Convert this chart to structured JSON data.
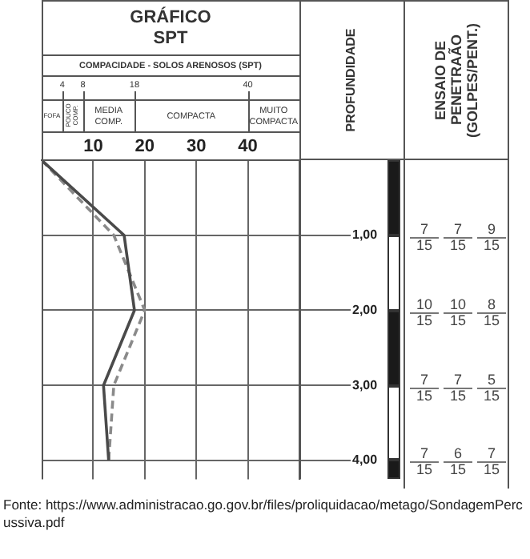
{
  "chart_data": {
    "type": "line",
    "orientation": "horizontal",
    "title": "GRÁFICO SPT",
    "subtitle": "COMPACIDADE - SOLOS ARENOSOS (SPT)",
    "ylabel": "PROFUNDIDADE",
    "series": [
      {
        "x": [
          0,
          1,
          2,
          3,
          4
        ],
        "values": [
          0,
          16,
          18,
          12,
          13
        ],
        "color": "#4a4a4a",
        "line_style": "solid"
      },
      {
        "x": [
          0,
          1,
          2,
          3,
          4
        ],
        "values": [
          0,
          14,
          20,
          14,
          13
        ],
        "color": "#8a8a8a",
        "line_style": "dashed"
      }
    ],
    "xlim": [
      0,
      50
    ],
    "xticks": [
      10,
      20,
      30,
      40
    ],
    "x2lim": [
      0,
      50
    ],
    "x2ticks": [
      4,
      8,
      18,
      40
    ],
    "ylim": [
      4.25,
      0
    ],
    "yticks": [
      {
        "value": 1,
        "label": "1,00"
      },
      {
        "value": 2,
        "label": "2,00"
      },
      {
        "value": 3,
        "label": "3,00"
      },
      {
        "value": 4,
        "label": "4,00"
      }
    ],
    "grid": true,
    "legend": false,
    "marker": "none",
    "annotations": [
      "ENSAIO DE PENETRAÃO (GOLPES/PENT.)",
      "FOFA",
      "POUCO COMP.",
      "MEDIA COMP.",
      "COMPACTA",
      "MUITO COMPACTA",
      "7",
      "15",
      "7",
      "15",
      "9",
      "15",
      "10",
      "15",
      "10",
      "15",
      "8",
      "15",
      "7",
      "15",
      "7",
      "15",
      "5",
      "15",
      "7",
      "15",
      "6",
      "15",
      "7",
      "15",
      "Fonte: https://www.administracao.go.gov.br/files/proliquidacao/metago/SondagemPercussiva.pdf"
    ]
  }
}
